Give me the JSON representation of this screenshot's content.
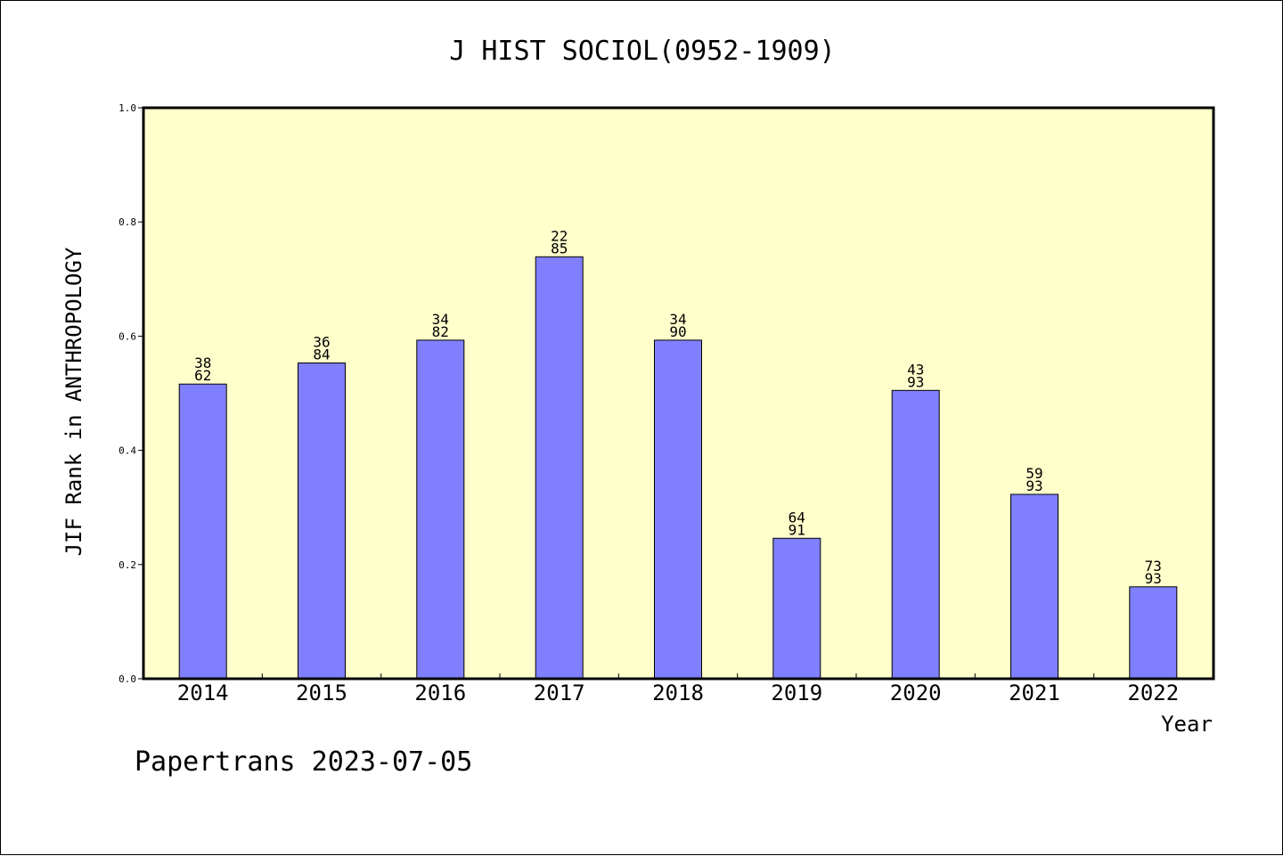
{
  "chart_data": {
    "type": "bar",
    "title": "J HIST SOCIOL(0952-1909)",
    "xlabel": "Year",
    "ylabel": "JIF Rank in ANTHROPOLOGY",
    "ylim": [
      0,
      1.0
    ],
    "yticks": [
      "0.0",
      "0.2",
      "0.4",
      "0.6",
      "0.8",
      "1.0"
    ],
    "categories": [
      "2014",
      "2015",
      "2016",
      "2017",
      "2018",
      "2019",
      "2020",
      "2021",
      "2022"
    ],
    "values": [
      0.516,
      0.553,
      0.593,
      0.739,
      0.593,
      0.246,
      0.505,
      0.323,
      0.161
    ],
    "labels": [
      {
        "rank": "38",
        "total": "62"
      },
      {
        "rank": "36",
        "total": "84"
      },
      {
        "rank": "34",
        "total": "82"
      },
      {
        "rank": "22",
        "total": "85"
      },
      {
        "rank": "34",
        "total": "90"
      },
      {
        "rank": "64",
        "total": "91"
      },
      {
        "rank": "43",
        "total": "93"
      },
      {
        "rank": "59",
        "total": "93"
      },
      {
        "rank": "73",
        "total": "93"
      }
    ],
    "grid": false,
    "colors": {
      "bar": "#8080ff",
      "plot_background": "#ffffcc"
    }
  },
  "footer": "Papertrans 2023-07-05"
}
